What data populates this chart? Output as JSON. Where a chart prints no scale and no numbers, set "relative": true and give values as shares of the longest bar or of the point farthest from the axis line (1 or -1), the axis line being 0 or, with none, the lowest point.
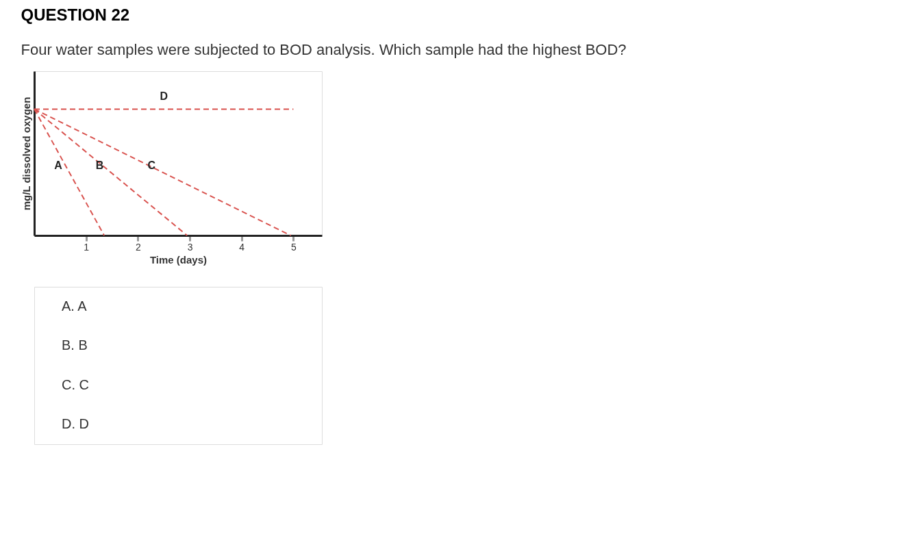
{
  "chart_data": {
    "type": "line",
    "title": "QUESTION 22",
    "subtitle": "Four water samples were subjected to BOD analysis. Which sample had the highest BOD?",
    "xlabel": "Time (days)",
    "ylabel": "mg/L dissolved oxygen",
    "relative": true,
    "xlim": [
      0,
      5.55
    ],
    "xticks": [
      1,
      2,
      3,
      4,
      5
    ],
    "line_style": "dashed",
    "marker": "none",
    "grid": false,
    "tick_labels": "x",
    "series": [
      {
        "name": "A",
        "color": "#d9534f",
        "x": [
          0,
          1.35
        ],
        "values": [
          1,
          0
        ]
      },
      {
        "name": "B",
        "color": "#d9534f",
        "x": [
          0,
          2.95
        ],
        "values": [
          1,
          0
        ]
      },
      {
        "name": "C",
        "color": "#d9534f",
        "x": [
          0,
          4.95
        ],
        "values": [
          1,
          0
        ]
      },
      {
        "name": "D",
        "color": "#d9534f",
        "x": [
          0,
          5
        ],
        "values": [
          1,
          1
        ]
      }
    ],
    "annotations": [
      "A. A",
      "B. B",
      "C. C",
      "D. D"
    ]
  }
}
